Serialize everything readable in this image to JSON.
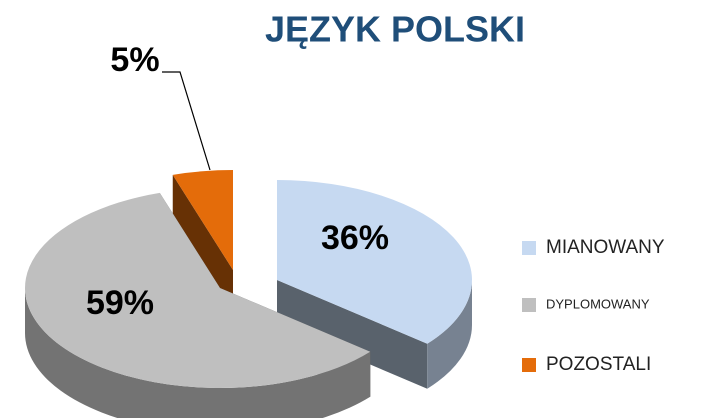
{
  "chart_data": {
    "type": "pie3d",
    "title": "JĘZYK POLSKI",
    "categories": [
      "MIANOWANY",
      "DYPLOMOWANY",
      "POZOSTALI"
    ],
    "values": [
      36,
      59,
      5
    ],
    "value_labels": [
      "36%",
      "59%",
      "5%"
    ],
    "colors": [
      "#c6d9f1",
      "#bfbfbf",
      "#e46c0a"
    ],
    "legend": "right"
  }
}
